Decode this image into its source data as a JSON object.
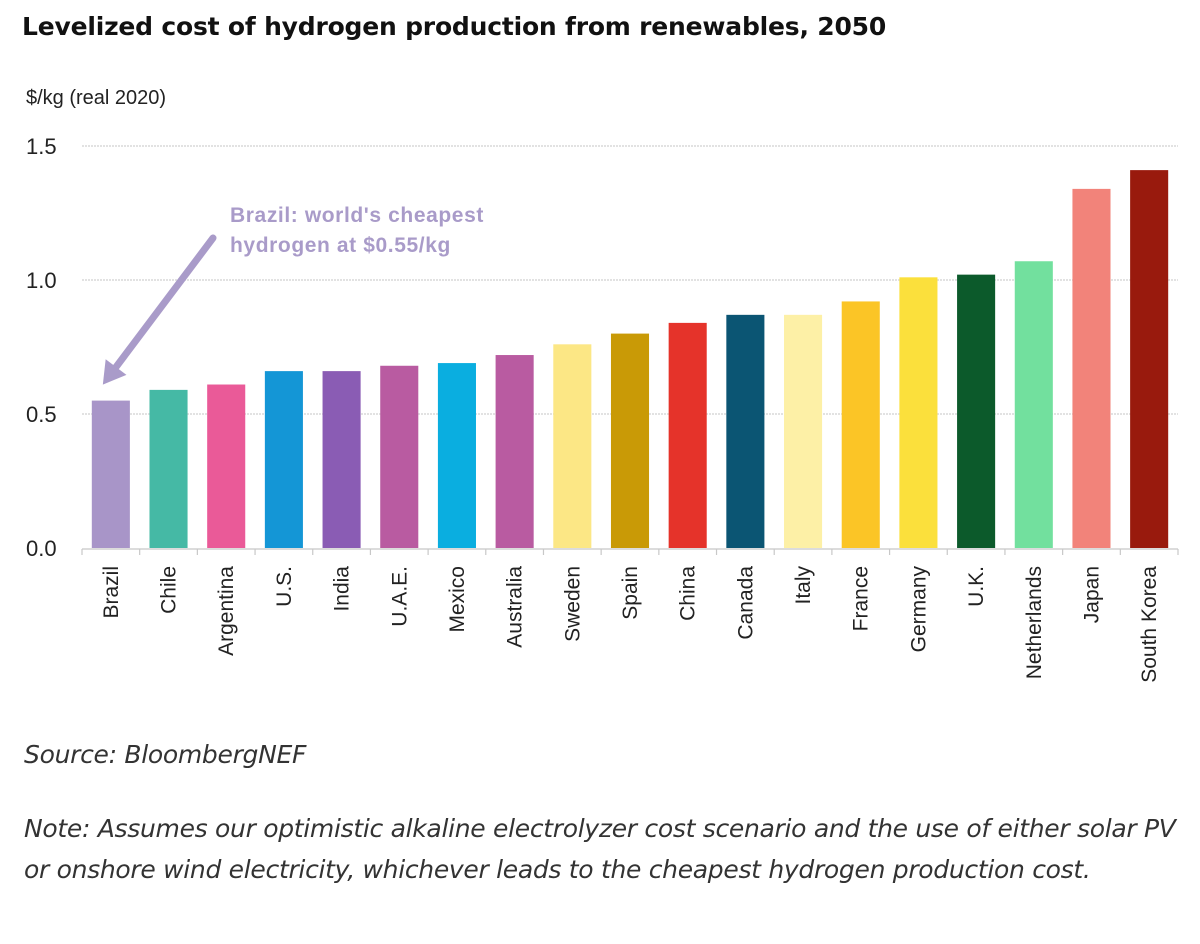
{
  "header": {
    "title": "Levelized cost of hydrogen production from renewables, 2050"
  },
  "footer": {
    "source": "Source: BloombergNEF",
    "note": "Note: Assumes our optimistic alkaline electrolyzer cost scenario and the use of either solar PV or onshore wind electricity, whichever leads to the cheapest hydrogen production cost."
  },
  "chart_data": {
    "type": "bar",
    "title": "Levelized cost of hydrogen production from renewables, 2050",
    "xlabel": "",
    "ylabel": "$/kg (real 2020)",
    "ylim": [
      0,
      1.5
    ],
    "yticks": [
      0.0,
      0.5,
      1.0,
      1.5
    ],
    "ytick_labels": [
      "0.0",
      "0.5",
      "1.0",
      "1.5"
    ],
    "grid": true,
    "legend": "none",
    "categories": [
      "Brazil",
      "Chile",
      "Argentina",
      "U.S.",
      "India",
      "U.A.E.",
      "Mexico",
      "Australia",
      "Sweden",
      "Spain",
      "China",
      "Canada",
      "Italy",
      "France",
      "Germany",
      "U.K.",
      "Netherlands",
      "Japan",
      "South Korea"
    ],
    "values": [
      0.55,
      0.59,
      0.61,
      0.66,
      0.66,
      0.68,
      0.69,
      0.72,
      0.76,
      0.8,
      0.84,
      0.87,
      0.87,
      0.92,
      1.01,
      1.02,
      1.07,
      1.34,
      1.41
    ],
    "colors": [
      "#A895C8",
      "#45B9A5",
      "#EA5A98",
      "#1496D6",
      "#8A5CB4",
      "#B95BA1",
      "#0AAEE0",
      "#B95BA1",
      "#FCE785",
      "#C99A06",
      "#E5332A",
      "#0B5573",
      "#FDF0A6",
      "#FBC526",
      "#FBE03C",
      "#0C5A2B",
      "#72E09E",
      "#F2837A",
      "#991A0D"
    ],
    "annotations": [
      {
        "text_lines": [
          "Brazil: world's cheapest",
          "hydrogen at $0.55/kg"
        ],
        "target_category": "Brazil",
        "color": "#A99BC9"
      }
    ]
  }
}
